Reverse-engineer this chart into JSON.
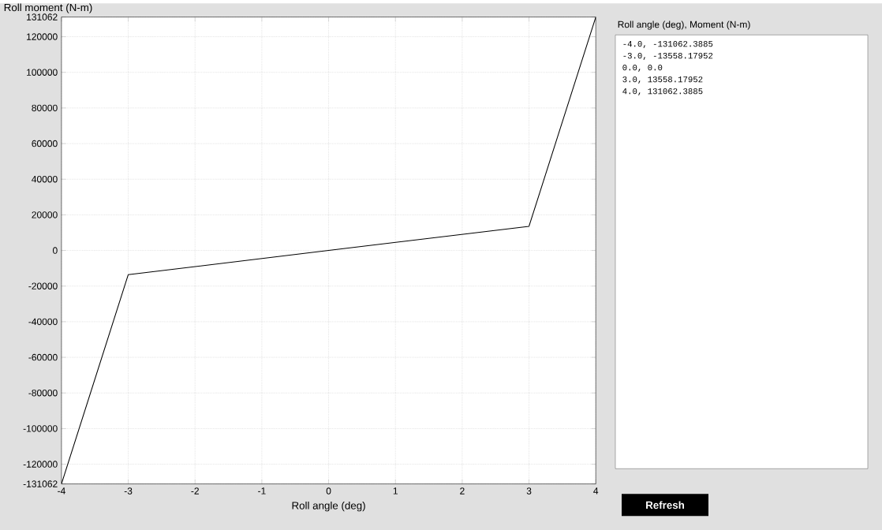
{
  "chart_data": {
    "type": "line",
    "xlabel": "Roll angle (deg)",
    "ylabel": "Roll moment (N-m)",
    "x": [
      -4,
      -3,
      0,
      3,
      4
    ],
    "series": [
      {
        "color": "#000000",
        "values": [
          -131062.3885,
          -13558.17952,
          0,
          13558.17952,
          131062.3885
        ]
      }
    ],
    "xlim": [
      -4,
      4
    ],
    "xticks": [
      -4,
      -3,
      -2,
      -1,
      0,
      1,
      2,
      3,
      4
    ],
    "ylim": [
      -131062.3885,
      131062.3885
    ],
    "yticks": [
      {
        "value": -131062.3885,
        "label": "-131062"
      },
      -120000,
      -100000,
      -80000,
      -60000,
      -40000,
      -20000,
      0,
      20000,
      40000,
      60000,
      80000,
      100000,
      120000,
      {
        "value": 131062.3885,
        "label": "131062"
      }
    ],
    "grid": true,
    "marker": "none",
    "line_style": "solid",
    "annotations": [
      "Roll angle (deg), Moment (N-m)",
      "-4.0, -131062.3885",
      "-3.0, -13558.17952",
      "0.0, 0.0",
      "3.0, 13558.17952",
      "4.0, 131062.3885",
      "Refresh"
    ]
  }
}
